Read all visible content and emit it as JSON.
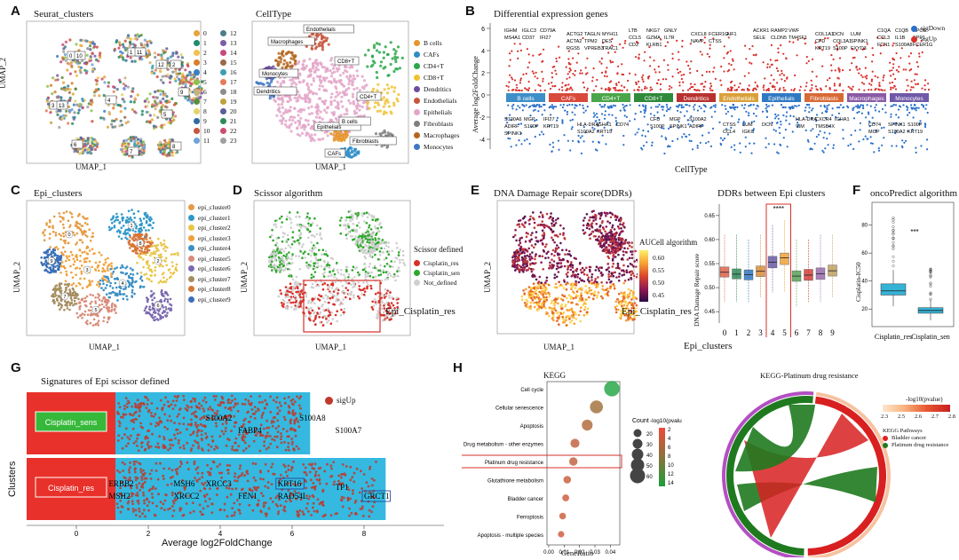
{
  "panels": {
    "A": {
      "label": "A",
      "umap1": {
        "title": "Seurat_clusters",
        "xlabel": "UMAP_1",
        "ylabel": "UMAP_2",
        "clusters": [
          "0",
          "1",
          "2",
          "3",
          "4",
          "5",
          "6",
          "7",
          "8",
          "9",
          "10",
          "11",
          "12",
          "13",
          "14",
          "15",
          "16",
          "17",
          "18",
          "19",
          "20",
          "21",
          "22",
          "23"
        ],
        "colors": [
          "#e8a33b",
          "#1f8a70",
          "#f2c14e",
          "#d97e2a",
          "#3b7fc4",
          "#8fbf4d",
          "#c9b27a",
          "#5a8f3c",
          "#e2d36b",
          "#2f6aa3",
          "#c8553d",
          "#6fa4d8",
          "#4d7c8a",
          "#7b5ea7",
          "#c74a7e",
          "#9b6a4b",
          "#3c9fb0",
          "#e47b5a",
          "#8c8c8c",
          "#bfa23a",
          "#5b5f97",
          "#2e8b57",
          "#cf4d6f",
          "#a0a0a0"
        ]
      },
      "umap2": {
        "title": "CellType",
        "xlabel": "UMAP_1",
        "celltypes": [
          "B cells",
          "CAFs",
          "CD4+T",
          "CD8+T",
          "Dendritics",
          "Endothelials",
          "Epithelials",
          "Fibroblasts",
          "Macrophages",
          "Monocytes"
        ],
        "colors": [
          "#e8962b",
          "#2c8cc7",
          "#2aa84a",
          "#f1c232",
          "#6d4c9e",
          "#c8553d",
          "#e3a6c9",
          "#7f7f7f",
          "#b5651d",
          "#3f78c2"
        ],
        "callouts": [
          "Endothelials",
          "Macrophages",
          "CD8+T",
          "Monocytes",
          "Dendritics",
          "CD4+T",
          "Epithelials",
          "B cells",
          "Fibroblasts",
          "CAFs"
        ]
      }
    },
    "B": {
      "label": "B",
      "title": "Differential expression genes",
      "ylabel": "Average log2FoldChange",
      "xlabel": "CellType",
      "legend": [
        "sigDown",
        "sigUp"
      ],
      "legend_colors": [
        "#2a6fc9",
        "#d7302a"
      ],
      "yticks": [
        "6",
        "4",
        "2",
        "0",
        "-2",
        "-4"
      ],
      "celltypes": [
        "B cells",
        "CAFs",
        "CD4+T",
        "CD8+T",
        "Dendritics",
        "Endothelials",
        "Epithelials",
        "Fibroblasts",
        "Macrophages",
        "Monocytes"
      ],
      "band_colors": [
        "#3e8ec8",
        "#d94a3b",
        "#4aa64a",
        "#2f8a3a",
        "#b7322f",
        "#d9a13a",
        "#2f79c2",
        "#d86a35",
        "#8a5aa5",
        "#7059a8"
      ],
      "up_genes": [
        [
          "IGHM",
          "IGLC3",
          "CD79A",
          "MS4A1",
          "CD37",
          "IFI27"
        ],
        [
          "ACTG2",
          "TAGLN",
          "MYH11",
          "ACTA2",
          "TPM2",
          "DES",
          "RGS5",
          "VPREB3",
          "TRAC1"
        ],
        [
          "LTB",
          "NKG7",
          "GNLY",
          "CCL5",
          "GZMA",
          "IL7R",
          "CD2",
          "KLRB1"
        ],
        [
          "CXCL8",
          "FCER1G",
          "AIF1",
          "NAVP",
          "CTSS"
        ],
        [
          "ACKR1",
          "RAMP2",
          "VWF",
          "SELE",
          "CLDN5",
          "TM4SF1"
        ],
        [
          "COL1A1",
          "DCN",
          "LUM",
          "CFD",
          "COL3A1",
          "SPINK1",
          "KRT19",
          "S100P",
          "FXYD3"
        ],
        [
          "C1QA",
          "C1QB",
          "APOE",
          "CCL3",
          "IL1B",
          "SPP1",
          "FCN1",
          "S100A8",
          "FCER1G"
        ]
      ],
      "down_genes": [
        [
          "S100A6",
          "MGP",
          "IFI27",
          "ADIRF",
          "S100P",
          "KRT19",
          "SPINK1"
        ],
        [
          "HLA-DRA",
          "IGHA1",
          "CD74",
          "S100A2",
          "KRT19"
        ],
        [
          "CFD",
          "MGP",
          "S100A2",
          "S100P",
          "SPINK1",
          "ADIRF"
        ],
        [
          "CTSS",
          "LUM",
          "DCN",
          "CCL4",
          "IGKC"
        ],
        [
          "HLA-DRA",
          "CXCR4",
          "IGHA1",
          "VIM",
          "TMSB4X"
        ],
        [
          "CD74",
          "SPINK1",
          "S100P",
          "MGP",
          "S100A2",
          "KRT19"
        ]
      ]
    },
    "C": {
      "label": "C",
      "title": "Epi_clusters",
      "xlabel": "UMAP_1",
      "ylabel": "UMAP_2",
      "clusters": [
        "epi_cluster0",
        "epi_cluster1",
        "epi_cluster2",
        "epi_cluster3",
        "epi_cluster4",
        "epi_cluster5",
        "epi_cluster6",
        "epi_cluster7",
        "epi_cluster8",
        "epi_cluster9"
      ],
      "colors": [
        "#e69c45",
        "#2f98c9",
        "#e9c547",
        "#f0a23a",
        "#3a8fc4",
        "#d98b79",
        "#7c6ab0",
        "#a58d5f",
        "#d87535",
        "#3b6fb7"
      ]
    },
    "D": {
      "label": "D",
      "title": "Scissor algorithm",
      "xlabel": "UMAP_1",
      "ylabel": "UMAP_2",
      "legend_title": "Scissor defined",
      "legend": [
        "Cisplatin_res",
        "Cisplatin_sen",
        "Not_defined"
      ],
      "colors": [
        "#d7302a",
        "#2ea82c",
        "#cfcfcf"
      ],
      "annotation": "Epi_Cisplatin_res"
    },
    "E": {
      "label": "E",
      "title": "DNA Damage Repair score(DDRs)",
      "xlabel": "UMAP_1",
      "ylabel": "UMAP_2",
      "colorbar_title": "AUCell algorithm",
      "colorbar_ticks": [
        "0.60",
        "0.55",
        "0.50",
        "0.45"
      ],
      "annotation": "Epi_Cisplatin_res"
    },
    "E2": {
      "title": "DDRs between Epi clusters",
      "ylabel": "DNA Damage Repair score",
      "xlabel": "Epi_clusters",
      "signif": "****"
    },
    "F": {
      "label": "F",
      "title": "oncoPredict algorithm",
      "ylabel": "Cisplatin-IC50",
      "signif": "***",
      "groups": [
        "Cisplatin_res",
        "Cisplatin_sen"
      ]
    },
    "G": {
      "label": "G",
      "title": "Signatures of Epi scissor defined",
      "xlabel": "Average log2FoldChange",
      "ylabel": "Clusters",
      "legend": "sigUp",
      "groups": [
        "Cisplatin_sens",
        "Cisplatin_res"
      ],
      "sens_genes": [
        "S100A2",
        "S100A8",
        "FABP4",
        "S100A7"
      ],
      "res_genes": [
        "ERBB2",
        "MSH6",
        "XRCC3",
        "MSH2",
        "XRCC2",
        "FEN1",
        "KRT16",
        "RAD54L",
        "TP1",
        "GRCT1"
      ],
      "boxed_genes": [
        "KRT16",
        "GRCT1"
      ],
      "xticks": [
        "0",
        "2",
        "4",
        "6",
        "8"
      ]
    },
    "H": {
      "label": "H",
      "title": "KEGG",
      "xlabel": "GeneRatio",
      "size_legend_title": "Count",
      "color_legend_title": "-log10(pvalu",
      "highlight": "Platinum drug resistance",
      "chord_title": "KEGG-Platinum drug resistance",
      "chord_legend_title": "-log10(pvalue)",
      "chord_legend_ticks": [
        "2.3",
        "2.5",
        "2.6",
        "2.7",
        "2.8"
      ],
      "chord_pathways_title": "KEGG Pathways",
      "chord_pathways": [
        "Bladder cancer",
        "Platinum drug resistance"
      ]
    }
  },
  "chart_data": [
    {
      "type": "scatter",
      "title": "KEGG",
      "xlabel": "GeneRatio",
      "ylabel": "",
      "categories": [
        "Cell cycle",
        "Cellular senescence",
        "Apoptosis",
        "Drug metabolism - other enzymes",
        "Platinum drug resistance",
        "Glutathione metabolism",
        "Bladder cancer",
        "Ferroptosis",
        "Apoptosis - multiple species"
      ],
      "x": [
        0.041,
        0.031,
        0.025,
        0.017,
        0.016,
        0.012,
        0.011,
        0.009,
        0.008
      ],
      "count": [
        62,
        48,
        36,
        26,
        22,
        18,
        14,
        13,
        11
      ],
      "neglog10p": [
        14,
        5,
        4,
        3,
        3,
        2.5,
        2,
        2.5,
        2
      ],
      "xticks": [
        "0.00",
        "0.01",
        "0.02",
        "0.03",
        "0.04"
      ],
      "xlim": [
        0.0,
        0.045
      ],
      "size_legend": [
        20,
        30,
        40,
        50,
        60
      ],
      "color_legend": [
        2,
        4,
        6,
        8,
        10,
        12,
        14
      ]
    },
    {
      "type": "box",
      "title": "DDRs between Epi clusters",
      "ylabel": "DNA Damage Repair score",
      "categories": [
        "0",
        "1",
        "2",
        "3",
        "4",
        "5",
        "6",
        "7",
        "8",
        "9"
      ],
      "median": [
        0.532,
        0.528,
        0.527,
        0.534,
        0.553,
        0.562,
        0.524,
        0.526,
        0.529,
        0.535
      ],
      "q1": [
        0.522,
        0.518,
        0.516,
        0.523,
        0.541,
        0.548,
        0.513,
        0.515,
        0.517,
        0.524
      ],
      "q3": [
        0.543,
        0.539,
        0.537,
        0.545,
        0.565,
        0.572,
        0.535,
        0.538,
        0.541,
        0.547
      ],
      "lo": [
        0.47,
        0.47,
        0.47,
        0.48,
        0.49,
        0.49,
        0.46,
        0.47,
        0.47,
        0.48
      ],
      "hi": [
        0.61,
        0.61,
        0.6,
        0.61,
        0.63,
        0.64,
        0.6,
        0.6,
        0.61,
        0.61
      ],
      "colors": [
        "#e0634a",
        "#2e8b57",
        "#2f79c2",
        "#d98c3a",
        "#6a5ba8",
        "#f0a23a",
        "#5aa35a",
        "#d43f3a",
        "#9c6ab0",
        "#c0a060"
      ],
      "yticks": [
        "0.65",
        "0.60",
        "0.55",
        "0.50",
        "0.45"
      ],
      "ylim": [
        0.43,
        0.67
      ]
    },
    {
      "type": "box",
      "title": "oncoPredict algorithm",
      "ylabel": "Cisplatin-IC50",
      "categories": [
        "Cisplatin_res",
        "Cisplatin_sen"
      ],
      "q1": [
        30,
        17
      ],
      "median": [
        33,
        19
      ],
      "q3": [
        38,
        21
      ],
      "lo": [
        22,
        12
      ],
      "hi": [
        48,
        27
      ],
      "yticks": [
        "80",
        "60",
        "40",
        "20"
      ],
      "ylim": [
        10,
        95
      ],
      "color": "#35b3d6"
    }
  ]
}
